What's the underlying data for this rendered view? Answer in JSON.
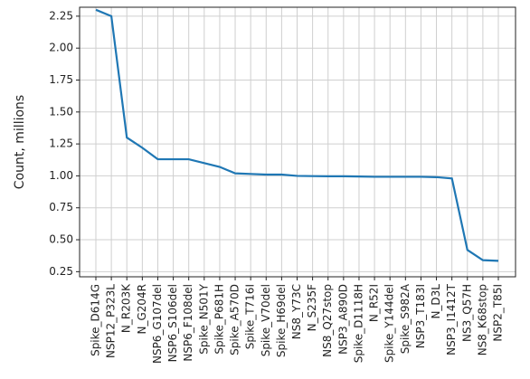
{
  "chart_data": {
    "type": "line",
    "ylabel": "Count, millions",
    "categories": [
      "Spike_D614G",
      "NSP12_P323L",
      "N_R203K",
      "N_G204R",
      "NSP6_G107del",
      "NSP6_S106del",
      "NSP6_F108del",
      "Spike_N501Y",
      "Spike_P681H",
      "Spike_A570D",
      "Spike_T716I",
      "Spike_V70del",
      "Spike_H69del",
      "NS8_Y73C",
      "N_S235F",
      "NS8_Q27stop",
      "NSP3_A890D",
      "Spike_D1118H",
      "N_R52I",
      "Spike_Y144del",
      "Spike_S982A",
      "NSP3_T183I",
      "N_D3L",
      "NSP3_I1412T",
      "NS3_Q57H",
      "NS8_K68stop",
      "NSP2_T85I"
    ],
    "values": [
      2.3,
      2.25,
      1.3,
      1.22,
      1.13,
      1.13,
      1.13,
      1.1,
      1.07,
      1.02,
      1.015,
      1.01,
      1.01,
      1.0,
      0.998,
      0.997,
      0.997,
      0.995,
      0.993,
      0.993,
      0.993,
      0.993,
      0.99,
      0.98,
      0.42,
      0.34,
      0.335
    ],
    "color": "#1f77b4",
    "ylim": [
      0.21,
      2.32
    ],
    "yticks": [
      {
        "value": 0.25,
        "label": "0.25"
      },
      {
        "value": 0.5,
        "label": "0.50"
      },
      {
        "value": 0.75,
        "label": "0.75"
      },
      {
        "value": 1.0,
        "label": "1.00"
      },
      {
        "value": 1.25,
        "label": "1.25"
      },
      {
        "value": 1.5,
        "label": "1.50"
      },
      {
        "value": 1.75,
        "label": "1.75"
      },
      {
        "value": 2.0,
        "label": "2.00"
      },
      {
        "value": 2.25,
        "label": "2.25"
      }
    ],
    "grid": true
  }
}
